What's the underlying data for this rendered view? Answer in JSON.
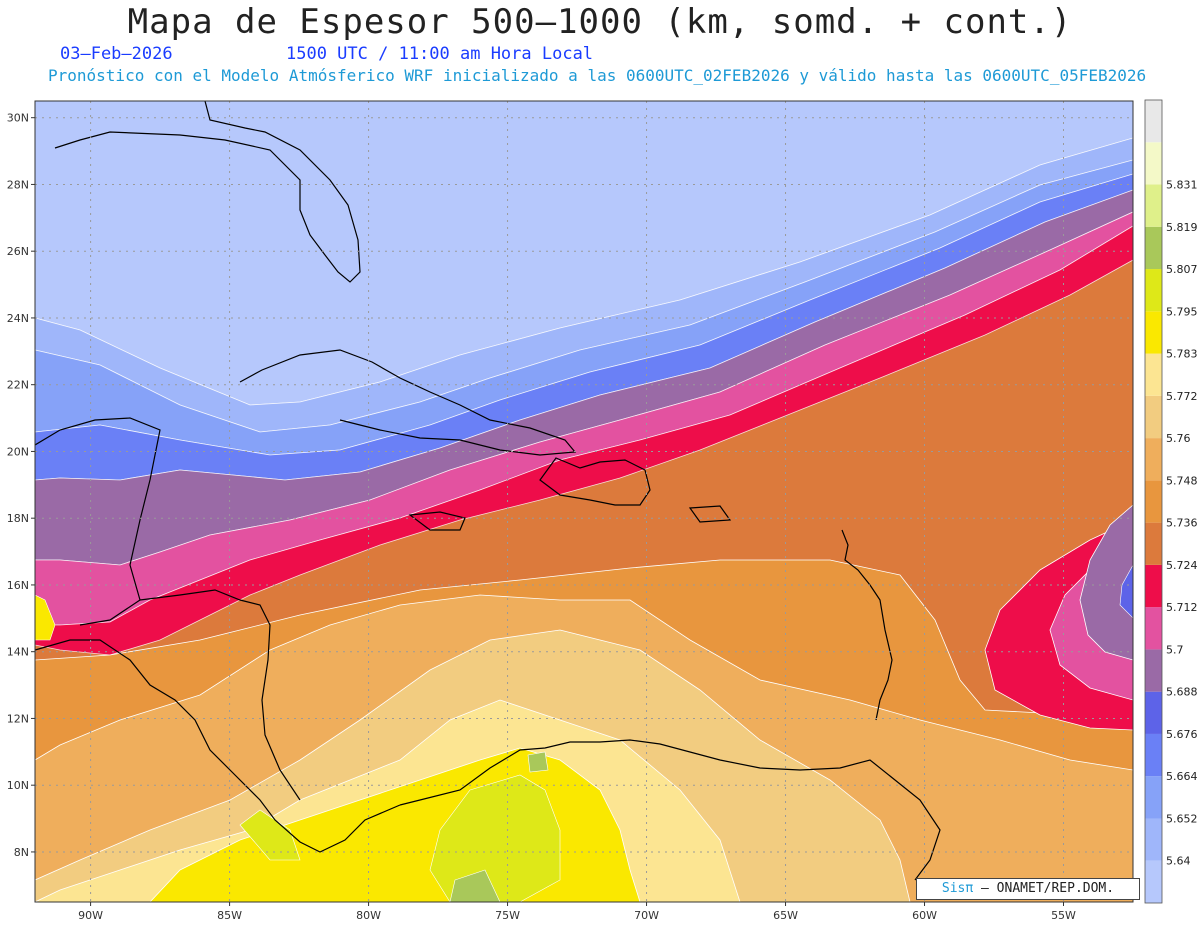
{
  "title": "Mapa de Espesor 500–1000 (km, somd. + cont.)",
  "date": "03–Feb–2026",
  "valid_time": "1500 UTC / 11:00 am Hora Local",
  "forecast_info": "Pronóstico con el Modelo Atmósferico WRF inicializado a las 0600UTC_02FEB2026 y válido hasta las  0600UTC_05FEB2026",
  "credit": {
    "brand": "Sisπ",
    "rest": " – ONAMET/REP.DOM."
  },
  "map": {
    "lon_range": [
      -92,
      -52.5
    ],
    "lat_range": [
      6.5,
      30.5
    ],
    "lat_ticks": [
      8,
      10,
      12,
      14,
      16,
      18,
      20,
      22,
      24,
      26,
      28,
      30
    ],
    "lon_ticks": [
      -90,
      -85,
      -80,
      -75,
      -70,
      -65,
      -60,
      -55
    ],
    "lat_labels": [
      "8N",
      "10N",
      "12N",
      "14N",
      "16N",
      "18N",
      "20N",
      "22N",
      "24N",
      "26N",
      "28N",
      "30N"
    ],
    "lon_labels": [
      "90W",
      "85W",
      "80W",
      "75W",
      "70W",
      "65W",
      "60W",
      "55W"
    ],
    "gridlines": "dotted"
  },
  "colorbar": {
    "labels": [
      "5.64",
      "5.652",
      "5.664",
      "5.676",
      "5.688",
      "5.7",
      "5.712",
      "5.724",
      "5.736",
      "5.748",
      "5.76",
      "5.772",
      "5.783",
      "5.795",
      "5.807",
      "5.819",
      "5.831"
    ],
    "colors": [
      "#b6c8fc",
      "#9fb6fa",
      "#86a2f8",
      "#6a80f6",
      "#5d63e8",
      "#9a6aa6",
      "#e352a0",
      "#ee0d4a",
      "#dc7a3c",
      "#e8963e",
      "#efae5c",
      "#f2cc80",
      "#fce592",
      "#fae800",
      "#dee818",
      "#a9c85a",
      "#dff08a",
      "#f4f9c8",
      "#e8e8e8"
    ]
  }
}
